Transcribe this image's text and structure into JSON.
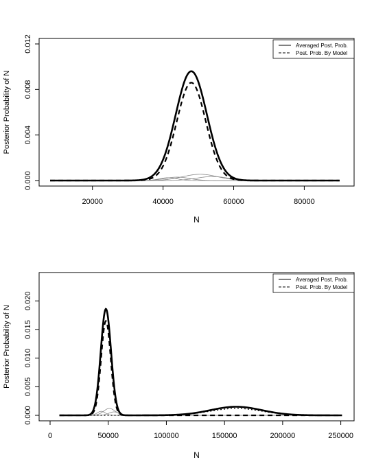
{
  "charts": [
    {
      "chart_data": {
        "type": "line",
        "xlabel": "N",
        "ylabel": "Posterior Probability of N",
        "xlim": [
          8000,
          91000
        ],
        "ylim": [
          0,
          0.012
        ],
        "x_ticks": [
          20000,
          40000,
          60000,
          80000
        ],
        "y_ticks": [
          0.0,
          0.004,
          0.008,
          0.012
        ],
        "y_tick_labels": [
          "0.000",
          "0.004",
          "0.008",
          "0.012"
        ],
        "legend": {
          "position": "top-right",
          "entries": [
            "Averaged Post. Prob.",
            "Post. Prob. By Model"
          ]
        },
        "series": [
          {
            "name": "Averaged Post. Prob.",
            "line": "solid-thick",
            "components": [
              {
                "peak_x": 48000,
                "peak_y": 0.0096,
                "sd": 4400
              }
            ]
          },
          {
            "name": "Post. Prob. By Model",
            "line": "dashed-thick",
            "components": [
              {
                "peak_x": 48000,
                "peak_y": 0.0086,
                "sd": 4100
              }
            ]
          },
          {
            "line": "thin-gray",
            "components": [
              {
                "peak_x": 50500,
                "peak_y": 0.00055,
                "sd": 5000
              }
            ]
          },
          {
            "line": "thin-gray",
            "components": [
              {
                "peak_x": 44000,
                "peak_y": 0.0003,
                "sd": 3500
              }
            ]
          },
          {
            "line": "thin-gray",
            "components": [
              {
                "peak_x": 54000,
                "peak_y": 0.00035,
                "sd": 4500
              }
            ]
          },
          {
            "line": "thin-gray",
            "components": [
              {
                "peak_x": 41500,
                "peak_y": 0.00025,
                "sd": 2500
              }
            ]
          }
        ]
      }
    },
    {
      "chart_data": {
        "type": "line",
        "xlabel": "N",
        "ylabel": "Posterior Probability of N",
        "xlim": [
          0,
          252000
        ],
        "ylim": [
          0,
          0.024
        ],
        "x_ticks": [
          0,
          50000,
          100000,
          150000,
          200000,
          250000
        ],
        "y_ticks": [
          0.0,
          0.005,
          0.01,
          0.015,
          0.02
        ],
        "y_tick_labels": [
          "0.000",
          "0.005",
          "0.010",
          "0.015",
          "0.020"
        ],
        "legend": {
          "position": "top-right",
          "entries": [
            "Averaged Post. Prob.",
            "Post. Prob. By Model"
          ]
        },
        "series": [
          {
            "name": "Averaged Post. Prob.",
            "line": "solid-thick",
            "components": [
              {
                "peak_x": 48000,
                "peak_y": 0.0186,
                "sd": 4400
              },
              {
                "peak_x": 160000,
                "peak_y": 0.0015,
                "sd": 22000
              }
            ]
          },
          {
            "name": "Post. Prob. By Model",
            "line": "dashed-thick",
            "components": [
              {
                "peak_x": 48000,
                "peak_y": 0.0165,
                "sd": 4100
              }
            ]
          },
          {
            "line": "dotted",
            "components": [
              {
                "peak_x": 160000,
                "peak_y": 0.0012,
                "sd": 22000
              }
            ]
          },
          {
            "line": "thin-gray",
            "components": [
              {
                "peak_x": 51000,
                "peak_y": 0.0012,
                "sd": 5000
              }
            ]
          },
          {
            "line": "thin-gray",
            "components": [
              {
                "peak_x": 44000,
                "peak_y": 0.0007,
                "sd": 3500
              }
            ]
          },
          {
            "line": "thin-gray",
            "components": [
              {
                "peak_x": 55000,
                "peak_y": 0.0006,
                "sd": 4500
              }
            ]
          }
        ]
      }
    }
  ]
}
